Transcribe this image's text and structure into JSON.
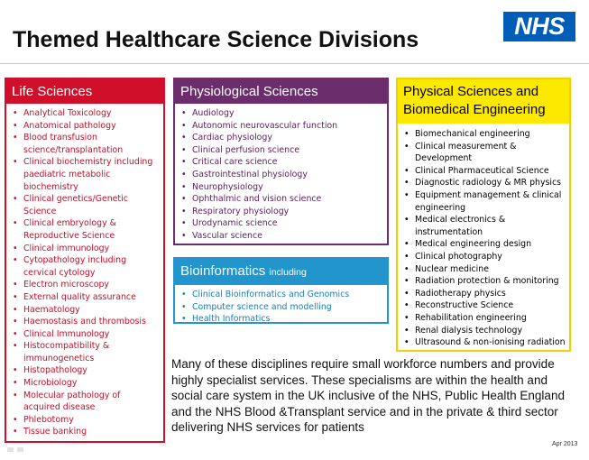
{
  "title": "Themed Healthcare Science Divisions",
  "logo_text": "NHS",
  "colors": {
    "life": "#d0102b",
    "physiological": "#6b2d6b",
    "bioinformatics": "#2295cc",
    "physical": "#fde800",
    "nhs_blue": "#005eb8"
  },
  "life_sciences": {
    "heading": "Life Sciences",
    "items": [
      "Analytical Toxicology",
      "Anatomical pathology",
      "Blood transfusion science/transplantation",
      "Clinical biochemistry including paediatric metabolic biochemistry",
      "Clinical genetics/Genetic Science",
      "Clinical embryology & Reproductive Science",
      "Clinical immunology",
      "Cytopathology including cervical cytology",
      "Electron microscopy",
      "External quality assurance",
      "Haematology",
      "Haemostasis and thrombosis",
      "Clinical Immunology",
      "Histocompatibility & immunogenetics",
      "Histopathology",
      "Microbiology",
      "Molecular pathology of acquired disease",
      "Phlebotomy",
      "Tissue banking"
    ]
  },
  "physiological_sciences": {
    "heading": "Physiological Sciences",
    "items": [
      "Audiology",
      "Autonomic neurovascular function",
      "Cardiac physiology",
      "Clinical perfusion science",
      "Critical care science",
      "Gastrointestinal physiology",
      "Neurophysiology",
      "Ophthalmic and vision science",
      "Respiratory physiology",
      "Urodynamic science",
      "Vascular science"
    ]
  },
  "bioinformatics": {
    "heading": "Bioinformatics",
    "heading_suffix": "including",
    "items": [
      "Clinical Bioinformatics and Genomics",
      "Computer science and modelling",
      "Health Informatics"
    ]
  },
  "physical_sciences": {
    "heading_line1": "Physical Sciences and",
    "heading_line2": "Biomedical Engineering",
    "items": [
      "Biomechanical engineering",
      "Clinical measurement & Development",
      "Clinical Pharmaceutical Science",
      "Diagnostic radiology & MR physics",
      "Equipment management & clinical engineering",
      "Medical electronics & instrumentation",
      "Medical engineering design",
      "Clinical photography",
      "Nuclear medicine",
      "Radiation protection & monitoring",
      "Radiotherapy physics",
      "Reconstructive Science",
      "Rehabilitation engineering",
      "Renal dialysis technology",
      "Ultrasound & non-ionising radiation"
    ]
  },
  "body_text": "Many of these disciplines require small workforce numbers and provide highly specialist services.  These specialisms are within the health and social care system in the UK inclusive of the NHS, Public Health England and the NHS Blood &Transplant service and in the private & third sector delivering NHS services for patients",
  "date": "Apr 2013"
}
